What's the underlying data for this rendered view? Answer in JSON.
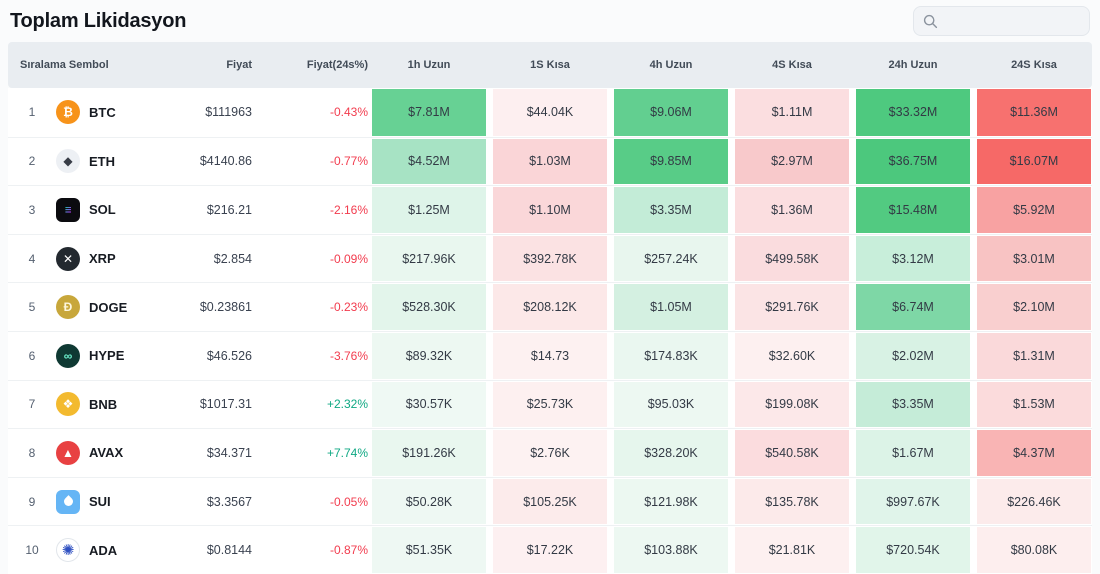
{
  "page": {
    "title": "Toplam Likidasyon"
  },
  "search": {
    "placeholder": "",
    "value": ""
  },
  "colors": {
    "change_negative": "#f23c4e",
    "change_positive": "#0fa883",
    "header_bg": "#e9edf1",
    "long_strong_green": "#4ec97f",
    "short_strong_red": "#f7716f"
  },
  "table": {
    "columns": [
      "Sıralama Sembol",
      "Fiyat",
      "Fiyat(24s%)",
      "1h Uzun",
      "1S Kısa",
      "4h Uzun",
      "4S Kısa",
      "24h Uzun",
      "24S Kısa"
    ],
    "rows": [
      {
        "rank": "1",
        "symbol": "BTC",
        "icon": {
          "name": "btc-icon",
          "shape": "circle",
          "glyph": "₿",
          "bg": "#f7931a",
          "fg": "#ffffff"
        },
        "price": "$111963",
        "change": "-0.43%",
        "cells": [
          {
            "v": "$7.81M",
            "c": "#67d194"
          },
          {
            "v": "$44.04K",
            "c": "#fdeff0"
          },
          {
            "v": "$9.06M",
            "c": "#62cf90"
          },
          {
            "v": "$1.11M",
            "c": "#fbdee0"
          },
          {
            "v": "$33.32M",
            "c": "#4ec97f"
          },
          {
            "v": "$11.36M",
            "c": "#f7716f"
          }
        ]
      },
      {
        "rank": "2",
        "symbol": "ETH",
        "icon": {
          "name": "eth-icon",
          "shape": "circle",
          "glyph": "◆",
          "bg": "#edf0f4",
          "fg": "#383d47"
        },
        "price": "$4140.86",
        "change": "-0.77%",
        "cells": [
          {
            "v": "$4.52M",
            "c": "#a7e3c4"
          },
          {
            "v": "$1.03M",
            "c": "#fad5d7"
          },
          {
            "v": "$9.85M",
            "c": "#58cc87"
          },
          {
            "v": "$2.97M",
            "c": "#f8c9cb"
          },
          {
            "v": "$36.75M",
            "c": "#4cc87d"
          },
          {
            "v": "$16.07M",
            "c": "#f66967"
          }
        ]
      },
      {
        "rank": "3",
        "symbol": "SOL",
        "icon": {
          "name": "sol-icon",
          "shape": "rounded",
          "glyph": "≡",
          "bg": "#0b0b0f",
          "class": "sol"
        },
        "price": "$216.21",
        "change": "-2.16%",
        "cells": [
          {
            "v": "$1.25M",
            "c": "#def4e9"
          },
          {
            "v": "$1.10M",
            "c": "#fad7d9"
          },
          {
            "v": "$3.35M",
            "c": "#c3ecd7"
          },
          {
            "v": "$1.36M",
            "c": "#fbdee0"
          },
          {
            "v": "$15.48M",
            "c": "#52ca81"
          },
          {
            "v": "$5.92M",
            "c": "#f8a2a2"
          }
        ]
      },
      {
        "rank": "4",
        "symbol": "XRP",
        "icon": {
          "name": "xrp-icon",
          "shape": "circle",
          "glyph": "✕",
          "bg": "#23292f",
          "fg": "#ffffff"
        },
        "price": "$2.854",
        "change": "-0.09%",
        "cells": [
          {
            "v": "$217.96K",
            "c": "#e9f7ef"
          },
          {
            "v": "$392.78K",
            "c": "#fbe2e3"
          },
          {
            "v": "$257.24K",
            "c": "#e8f6ee"
          },
          {
            "v": "$499.58K",
            "c": "#fadcde"
          },
          {
            "v": "$3.12M",
            "c": "#c8eeda"
          },
          {
            "v": "$3.01M",
            "c": "#f8c3c3"
          }
        ]
      },
      {
        "rank": "5",
        "symbol": "DOGE",
        "icon": {
          "name": "doge-icon",
          "shape": "circle",
          "glyph": "Ð",
          "bg": "#c8a73b",
          "fg": "#fdf6dd"
        },
        "price": "$0.23861",
        "change": "-0.23%",
        "cells": [
          {
            "v": "$528.30K",
            "c": "#e3f5eb"
          },
          {
            "v": "$208.12K",
            "c": "#fce8e8"
          },
          {
            "v": "$1.05M",
            "c": "#d4f0e1"
          },
          {
            "v": "$291.76K",
            "c": "#fbe4e5"
          },
          {
            "v": "$6.74M",
            "c": "#7ed7a6"
          },
          {
            "v": "$2.10M",
            "c": "#f9cfcf"
          }
        ]
      },
      {
        "rank": "6",
        "symbol": "HYPE",
        "icon": {
          "name": "hype-icon",
          "shape": "circle",
          "glyph": "∞",
          "bg": "#0f3933",
          "fg": "#6ef2cf"
        },
        "price": "$46.526",
        "change": "-3.76%",
        "cells": [
          {
            "v": "$89.32K",
            "c": "#edf8f2"
          },
          {
            "v": "$14.73",
            "c": "#fdf1f1"
          },
          {
            "v": "$174.83K",
            "c": "#eaf7f0"
          },
          {
            "v": "$32.60K",
            "c": "#fdf0f0"
          },
          {
            "v": "$2.02M",
            "c": "#d8f2e4"
          },
          {
            "v": "$1.31M",
            "c": "#fad9da"
          }
        ]
      },
      {
        "rank": "7",
        "symbol": "BNB",
        "icon": {
          "name": "bnb-icon",
          "shape": "circle",
          "glyph": "❖",
          "bg": "#f3ba2f",
          "fg": "#ffffff"
        },
        "price": "$1017.31",
        "change": "+2.32%",
        "cells": [
          {
            "v": "$30.57K",
            "c": "#eff9f4"
          },
          {
            "v": "$25.73K",
            "c": "#fdf0f0"
          },
          {
            "v": "$95.03K",
            "c": "#edf8f2"
          },
          {
            "v": "$199.08K",
            "c": "#fce8e9"
          },
          {
            "v": "$3.35M",
            "c": "#c5ecd8"
          },
          {
            "v": "$1.53M",
            "c": "#fbdbdc"
          }
        ]
      },
      {
        "rank": "8",
        "symbol": "AVAX",
        "icon": {
          "name": "avax-icon",
          "shape": "circle",
          "glyph": "▲",
          "bg": "#e84142",
          "fg": "#ffffff"
        },
        "price": "$34.371",
        "change": "+7.74%",
        "cells": [
          {
            "v": "$191.26K",
            "c": "#e9f7ef"
          },
          {
            "v": "$2.76K",
            "c": "#fdf2f2"
          },
          {
            "v": "$328.20K",
            "c": "#e6f6ed"
          },
          {
            "v": "$540.58K",
            "c": "#fbdcde"
          },
          {
            "v": "$1.67M",
            "c": "#dcf3e7"
          },
          {
            "v": "$4.37M",
            "c": "#f9b4b4"
          }
        ]
      },
      {
        "rank": "9",
        "symbol": "SUI",
        "icon": {
          "name": "sui-icon",
          "shape": "rounded",
          "glyph": "",
          "bg": "#65b5f5",
          "class": "sui-drop"
        },
        "price": "$3.3567",
        "change": "-0.05%",
        "cells": [
          {
            "v": "$50.28K",
            "c": "#eef8f3"
          },
          {
            "v": "$105.25K",
            "c": "#fcebeb"
          },
          {
            "v": "$121.98K",
            "c": "#ecf8f1"
          },
          {
            "v": "$135.78K",
            "c": "#fceaea"
          },
          {
            "v": "$997.67K",
            "c": "#e0f4ea"
          },
          {
            "v": "$226.46K",
            "c": "#fcebeb"
          }
        ]
      },
      {
        "rank": "10",
        "symbol": "ADA",
        "icon": {
          "name": "ada-icon",
          "shape": "circle",
          "glyph": "✺",
          "bg": "#ffffff",
          "fg": "#2f50c1",
          "class": "ada"
        },
        "price": "$0.8144",
        "change": "-0.87%",
        "cells": [
          {
            "v": "$51.35K",
            "c": "#eef8f3"
          },
          {
            "v": "$17.22K",
            "c": "#fdf0f1"
          },
          {
            "v": "$103.88K",
            "c": "#edf8f2"
          },
          {
            "v": "$21.81K",
            "c": "#fdf0f0"
          },
          {
            "v": "$720.54K",
            "c": "#e1f5ea"
          },
          {
            "v": "$80.08K",
            "c": "#fdeeee"
          }
        ]
      }
    ]
  }
}
